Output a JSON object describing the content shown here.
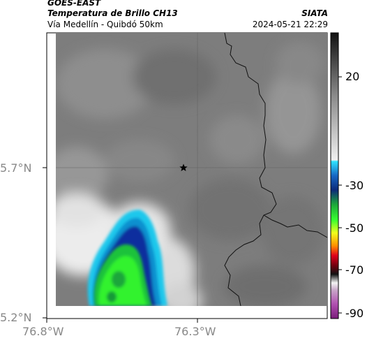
{
  "header": {
    "satellite": "GOES-EAST",
    "product": "Temperatura de Brillo CH13",
    "region": "Vía Medellín - Quibdó 50km",
    "organization": "SIATA",
    "timestamp": "2024-05-21 22:29"
  },
  "map": {
    "lat_ticks": [
      "5.7°N",
      "5.2°N"
    ],
    "lon_ticks": [
      "76.8°W",
      "76.3°W"
    ],
    "marker": "star"
  },
  "colorbar": {
    "ticks": [
      "20",
      "-30",
      "-50",
      "-70",
      "-90"
    ]
  },
  "colors": {
    "cold_blue": "#0a2f9e",
    "cyan": "#19c9e6",
    "green": "#22e33a",
    "gray": "#7d7d7d"
  }
}
